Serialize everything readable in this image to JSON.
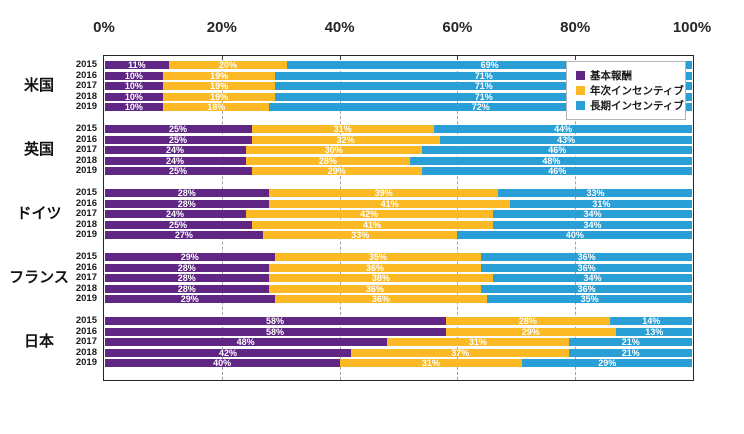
{
  "page": {
    "background": "#ffffff"
  },
  "chart_data": {
    "type": "bar",
    "variant": "horizontal-stacked",
    "title": "",
    "unit": "%",
    "x_axis": {
      "min": 0,
      "max": 100,
      "ticks": [
        "0%",
        "20%",
        "40%",
        "60%",
        "80%",
        "100%"
      ],
      "gridlines_at_percent": [
        20,
        40,
        60,
        80
      ],
      "gridline_style": "dashed"
    },
    "series": [
      {
        "name": "基本報酬",
        "color": "#602683"
      },
      {
        "name": "年次インセンティブ",
        "color": "#FBBA25"
      },
      {
        "name": "長期インセンティブ",
        "color": "#299FD6"
      }
    ],
    "legend": {
      "position": "top-right",
      "border_color": "#b5b5b5",
      "background": "#ffffff"
    },
    "value_label_color": "#ffffff",
    "groups": [
      {
        "label": "米国",
        "rows": [
          {
            "year": "2015",
            "values": [
              11,
              20,
              69
            ]
          },
          {
            "year": "2016",
            "values": [
              10,
              19,
              71
            ]
          },
          {
            "year": "2017",
            "values": [
              10,
              19,
              71
            ]
          },
          {
            "year": "2018",
            "values": [
              10,
              19,
              71
            ]
          },
          {
            "year": "2019",
            "values": [
              10,
              18,
              72
            ]
          }
        ]
      },
      {
        "label": "英国",
        "rows": [
          {
            "year": "2015",
            "values": [
              25,
              31,
              44
            ]
          },
          {
            "year": "2016",
            "values": [
              25,
              32,
              43
            ]
          },
          {
            "year": "2017",
            "values": [
              24,
              30,
              46
            ]
          },
          {
            "year": "2018",
            "values": [
              24,
              28,
              48
            ]
          },
          {
            "year": "2019",
            "values": [
              25,
              29,
              46
            ]
          }
        ]
      },
      {
        "label": "ドイツ",
        "rows": [
          {
            "year": "2015",
            "values": [
              28,
              39,
              33
            ]
          },
          {
            "year": "2016",
            "values": [
              28,
              41,
              31
            ]
          },
          {
            "year": "2017",
            "values": [
              24,
              42,
              34
            ]
          },
          {
            "year": "2018",
            "values": [
              25,
              41,
              34
            ]
          },
          {
            "year": "2019",
            "values": [
              27,
              33,
              40
            ]
          }
        ]
      },
      {
        "label": "フランス",
        "rows": [
          {
            "year": "2015",
            "values": [
              29,
              35,
              36
            ]
          },
          {
            "year": "2016",
            "values": [
              28,
              36,
              36
            ]
          },
          {
            "year": "2017",
            "values": [
              28,
              38,
              34
            ]
          },
          {
            "year": "2018",
            "values": [
              28,
              36,
              36
            ]
          },
          {
            "year": "2019",
            "values": [
              29,
              36,
              35
            ]
          }
        ]
      },
      {
        "label": "日本",
        "rows": [
          {
            "year": "2015",
            "values": [
              58,
              28,
              14
            ]
          },
          {
            "year": "2016",
            "values": [
              58,
              29,
              13
            ]
          },
          {
            "year": "2017",
            "values": [
              48,
              31,
              21
            ]
          },
          {
            "year": "2018",
            "values": [
              42,
              37,
              21
            ]
          },
          {
            "year": "2019",
            "values": [
              40,
              31,
              29
            ]
          }
        ]
      }
    ]
  }
}
